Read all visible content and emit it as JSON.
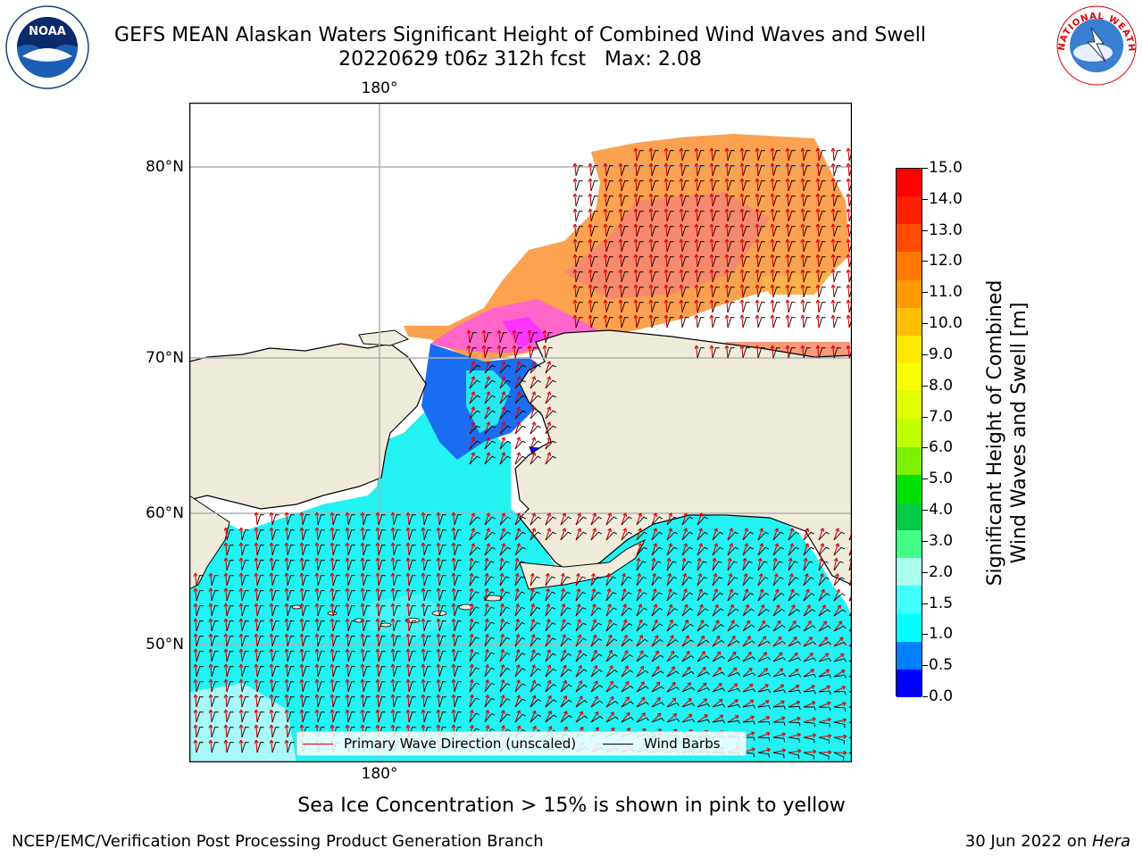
{
  "header": {
    "title_line1": "GEFS MEAN Alaskan Waters Significant Height of Combined Wind Waves and Swell",
    "title_line2": "20220629 t06z 312h fcst   Max: 2.08"
  },
  "logos": {
    "left_logo_text": "NOAA",
    "right_logo_text": "NATIONAL WEATHER SERVICE"
  },
  "map": {
    "lat_labels": [
      "80°N",
      "70°N",
      "60°N",
      "50°N"
    ],
    "lon_label_top": "180°",
    "lon_label_bottom": "180°",
    "legend": {
      "wave_label": "Primary Wave Direction (unscaled)",
      "wind_label": "Wind Barbs",
      "wave_color": "#e00000",
      "wind_color": "#000000"
    },
    "colors": {
      "land": "#efecdc",
      "ocean_wave": "#00ffff",
      "ice_orange": "#ffb347",
      "ice_pink": "#ff69b4",
      "ice_magenta": "#ff33ff"
    }
  },
  "colorbar": {
    "label_line1": "Significant Height of Combined",
    "label_line2": "Wind Waves and Swell [m]",
    "ticks": [
      "15.0",
      "14.0",
      "13.0",
      "12.0",
      "11.0",
      "10.0",
      "9.0",
      "8.0",
      "7.0",
      "6.0",
      "5.0",
      "4.0",
      "3.0",
      "2.0",
      "1.5",
      "1.0",
      "0.5",
      "0.0"
    ],
    "colors": [
      "#ff0000",
      "#ff2000",
      "#ff4c00",
      "#ff7800",
      "#ff9a00",
      "#ffbe00",
      "#ffe800",
      "#f8ff00",
      "#e0ff00",
      "#c0ff00",
      "#7cf000",
      "#00e000",
      "#00cc44",
      "#44ff88",
      "#aaffee",
      "#44ffff",
      "#00ffff",
      "#0080ff",
      "#0000ff"
    ]
  },
  "note": "Sea Ice Concentration > 15% is shown in pink to yellow",
  "footer": {
    "left": "NCEP/EMC/Verification Post Processing Product Generation Branch",
    "right_prefix": "30 Jun 2022 on ",
    "right_host": "Hera"
  }
}
